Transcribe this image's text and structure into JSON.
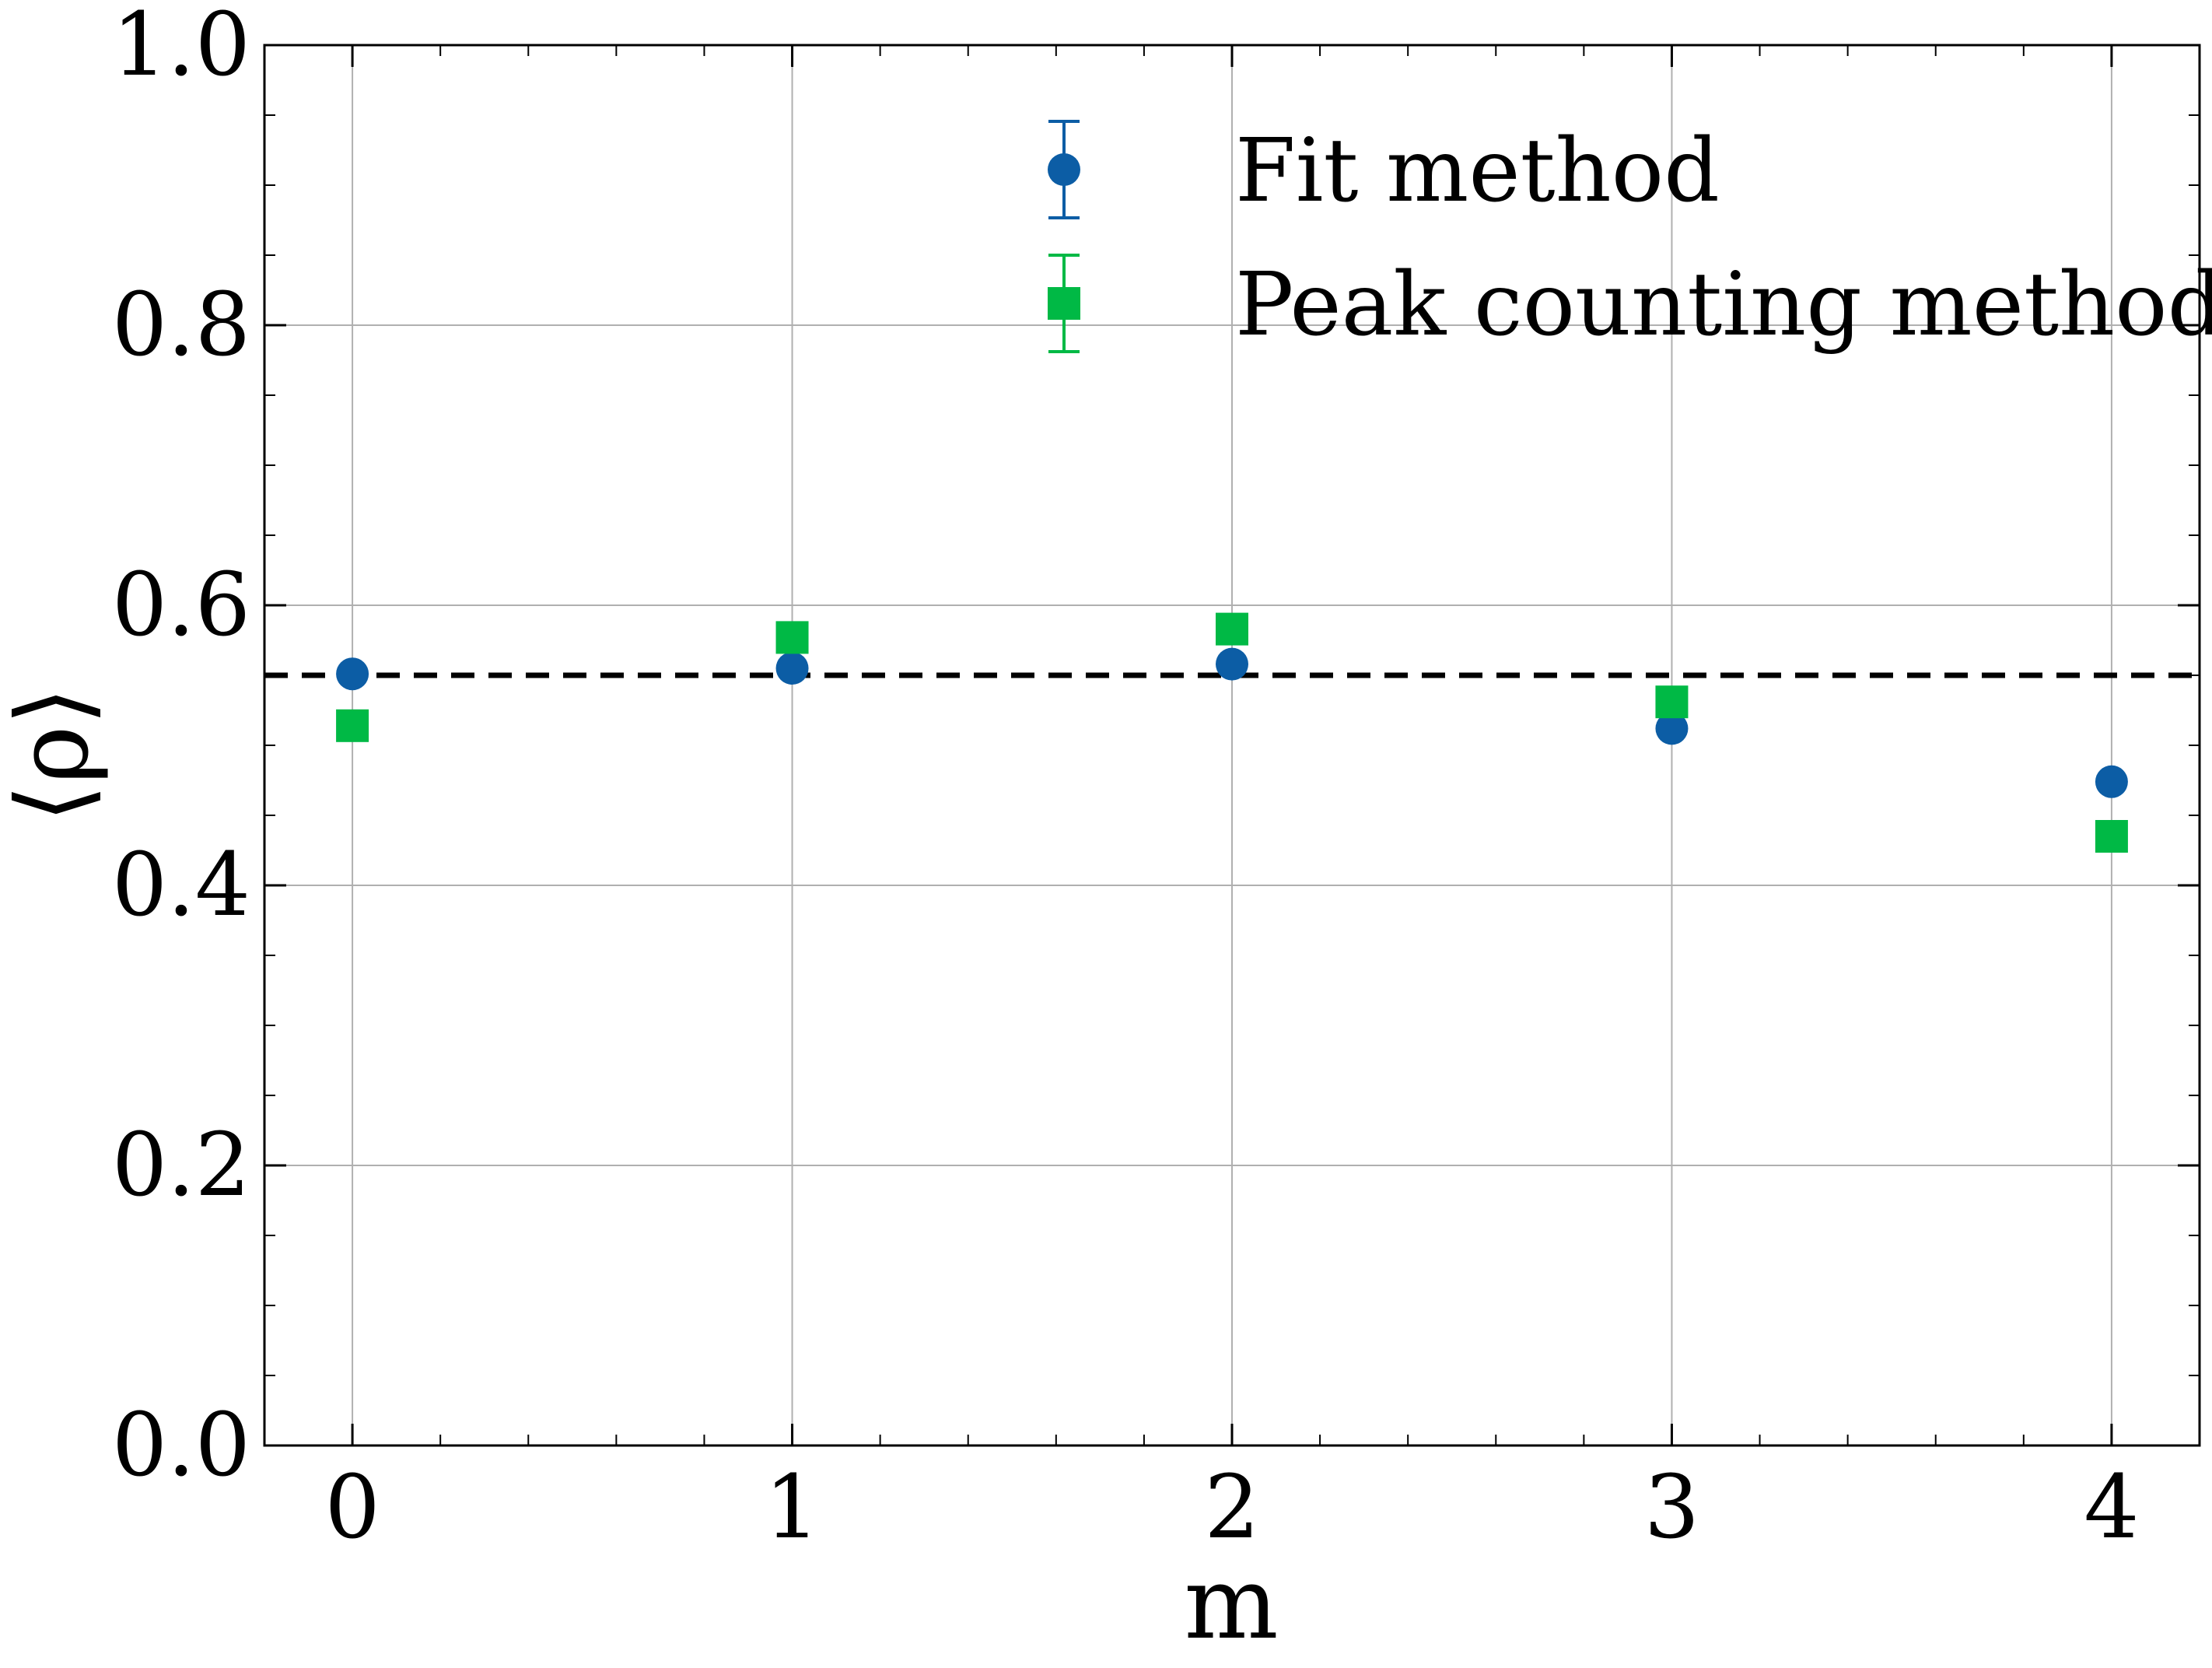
{
  "chart_data": {
    "type": "scatter",
    "xlabel": "m",
    "ylabel": "⟨ρ⟩",
    "xlim": [
      -0.2,
      4.2
    ],
    "ylim": [
      0.0,
      1.0
    ],
    "x_ticks": [
      "0",
      "1",
      "2",
      "3",
      "4"
    ],
    "y_ticks": [
      "0.0",
      "0.2",
      "0.4",
      "0.6",
      "0.8",
      "1.0"
    ],
    "grid": true,
    "legend_position": "top-center",
    "reference_line": {
      "y": 0.55,
      "style": "dashed",
      "color": "#000000"
    },
    "series": [
      {
        "name": "Fit method",
        "marker": "circle",
        "color": "#0C5DA5",
        "x": [
          0,
          1,
          2,
          3,
          4
        ],
        "y": [
          0.551,
          0.555,
          0.558,
          0.512,
          0.474
        ]
      },
      {
        "name": "Peak counting method",
        "marker": "square",
        "color": "#00B945",
        "x": [
          0,
          1,
          2,
          3,
          4
        ],
        "y": [
          0.514,
          0.577,
          0.583,
          0.531,
          0.435
        ]
      }
    ]
  }
}
